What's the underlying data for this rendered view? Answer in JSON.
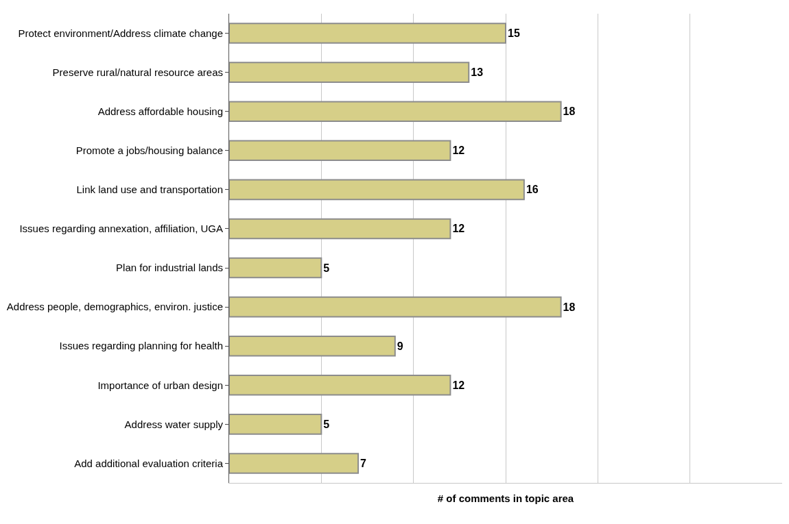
{
  "chart_data": {
    "type": "bar",
    "orientation": "horizontal",
    "xlabel": "# of comments in topic area",
    "categories": [
      "Protect environment/Address climate change",
      "Preserve rural/natural resource areas",
      "Address affordable housing",
      "Promote a jobs/housing balance",
      "Link land use and transportation",
      "Issues regarding annexation, affiliation, UGA",
      "Plan for industrial lands",
      "Address people, demographics, environ. justice",
      "Issues regarding planning for health",
      "Importance of urban design",
      "Address water supply",
      "Add additional evaluation criteria"
    ],
    "values": [
      15,
      13,
      18,
      12,
      16,
      12,
      5,
      18,
      9,
      12,
      5,
      7
    ],
    "color": "#d6cf88",
    "xlim": [
      0,
      30
    ],
    "xticks": [
      {
        "value": 0,
        "label": null
      },
      {
        "value": 5,
        "label": null
      },
      {
        "value": 10,
        "label": null
      },
      {
        "value": 15,
        "label": null
      },
      {
        "value": 20,
        "label": null
      },
      {
        "value": 25,
        "label": null
      }
    ],
    "grid": "x",
    "data_labels": true
  }
}
